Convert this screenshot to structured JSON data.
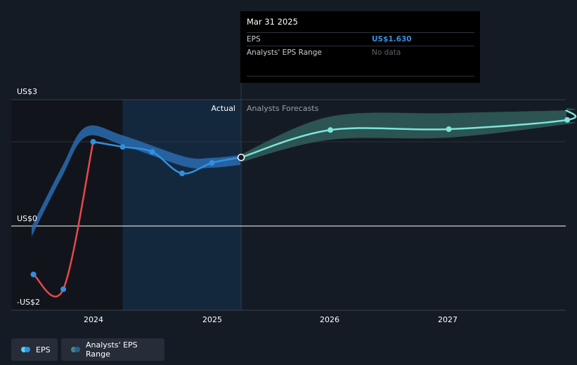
{
  "tooltip": {
    "date": "Mar 31 2025",
    "rows": [
      {
        "label": "EPS",
        "value": "US$1.630"
      },
      {
        "label": "Analysts' EPS Range",
        "value": "No data"
      }
    ]
  },
  "section_labels": {
    "actual": "Actual",
    "forecast": "Analysts Forecasts"
  },
  "legend": [
    {
      "label": "EPS"
    },
    {
      "label": "Analysts' EPS Range"
    }
  ],
  "colors": {
    "background": "#151b24",
    "eps_actual": "#2e91e0",
    "eps_negative": "#e8484b",
    "eps_forecast": "#7de5d9",
    "range_actual": "#2a6bb0",
    "range_forecast": "#2f5e5c"
  },
  "chart_data": {
    "type": "line",
    "y_tick_labels": [
      "US$3",
      "US$0",
      "-US$2"
    ],
    "x_tick_labels": [
      "2024",
      "2025",
      "2026",
      "2027"
    ],
    "ylim": [
      -2,
      3
    ],
    "series": [
      {
        "name": "EPS",
        "points": [
          {
            "x": "2023-06-30",
            "y": -1.15
          },
          {
            "x": "2023-09-30",
            "y": -1.5
          },
          {
            "x": "2023-12-31",
            "y": 2.0
          },
          {
            "x": "2024-03-31",
            "y": 1.88
          },
          {
            "x": "2024-06-30",
            "y": 1.76
          },
          {
            "x": "2024-09-30",
            "y": 1.25
          },
          {
            "x": "2024-12-31",
            "y": 1.5
          },
          {
            "x": "2025-03-31",
            "y": 1.63
          }
        ]
      },
      {
        "name": "EPS forecast",
        "points": [
          {
            "x": "2025-03-31",
            "y": 1.63
          },
          {
            "x": "2025-12-31",
            "y": 2.28
          },
          {
            "x": "2026-12-31",
            "y": 2.3
          },
          {
            "x": "2027-12-31",
            "y": 2.52
          }
        ]
      },
      {
        "name": "Analysts' EPS Range",
        "low": [
          {
            "x": "2025-03-31",
            "y": 1.52
          },
          {
            "x": "2025-12-31",
            "y": 2.05
          },
          {
            "x": "2026-12-31",
            "y": 2.1
          },
          {
            "x": "2027-12-31",
            "y": 2.42
          }
        ],
        "high": [
          {
            "x": "2025-03-31",
            "y": 1.7
          },
          {
            "x": "2025-12-31",
            "y": 2.6
          },
          {
            "x": "2026-12-31",
            "y": 2.68
          },
          {
            "x": "2027-12-31",
            "y": 2.75
          }
        ]
      }
    ]
  }
}
